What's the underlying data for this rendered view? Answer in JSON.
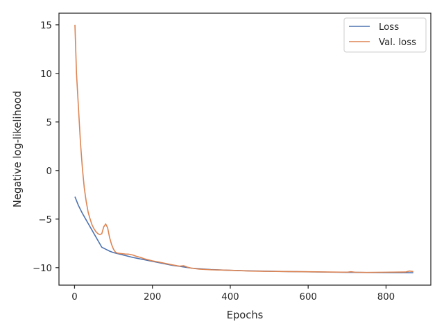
{
  "chart_data": {
    "type": "line",
    "xlabel": "Epochs",
    "ylabel": "Negative log-likelihood",
    "xlim": [
      -40,
      915
    ],
    "ylim": [
      -11.8,
      16.2
    ],
    "xticks": [
      0,
      200,
      400,
      600,
      800
    ],
    "yticks": [
      -10,
      -5,
      0,
      5,
      10,
      15
    ],
    "grid": false,
    "legend_position": "top-right",
    "series": [
      {
        "name": "Loss",
        "color": "#4c72b0",
        "x": [
          1,
          10,
          20,
          30,
          40,
          50,
          60,
          70,
          80,
          90,
          100,
          110,
          120,
          150,
          200,
          250,
          300,
          350,
          400,
          450,
          500,
          550,
          600,
          650,
          700,
          750,
          800,
          850,
          870
        ],
        "y": [
          -2.7,
          -3.6,
          -4.4,
          -5.1,
          -5.8,
          -6.5,
          -7.2,
          -7.9,
          -8.1,
          -8.3,
          -8.45,
          -8.55,
          -8.65,
          -8.95,
          -9.35,
          -9.75,
          -10.05,
          -10.2,
          -10.28,
          -10.33,
          -10.37,
          -10.4,
          -10.43,
          -10.46,
          -10.48,
          -10.5,
          -10.51,
          -10.52,
          -10.53
        ]
      },
      {
        "name": "Val. loss",
        "color": "#dd8452",
        "x": [
          1,
          5,
          10,
          15,
          20,
          25,
          30,
          35,
          40,
          45,
          50,
          55,
          60,
          65,
          70,
          75,
          80,
          85,
          90,
          95,
          100,
          105,
          110,
          120,
          130,
          140,
          150,
          160,
          170,
          180,
          200,
          220,
          250,
          270,
          280,
          290,
          300,
          320,
          350,
          400,
          450,
          500,
          550,
          600,
          650,
          700,
          710,
          720,
          750,
          800,
          850,
          860,
          870
        ],
        "y": [
          15.0,
          10.0,
          6.5,
          3.0,
          0.3,
          -1.8,
          -3.2,
          -4.3,
          -5.0,
          -5.6,
          -6.0,
          -6.3,
          -6.5,
          -6.6,
          -6.5,
          -5.8,
          -5.5,
          -5.9,
          -6.9,
          -7.6,
          -8.1,
          -8.4,
          -8.5,
          -8.55,
          -8.6,
          -8.62,
          -8.7,
          -8.85,
          -8.95,
          -9.1,
          -9.3,
          -9.45,
          -9.7,
          -9.85,
          -9.8,
          -9.95,
          -10.05,
          -10.15,
          -10.22,
          -10.27,
          -10.35,
          -10.38,
          -10.4,
          -10.42,
          -10.45,
          -10.47,
          -10.42,
          -10.47,
          -10.49,
          -10.47,
          -10.45,
          -10.35,
          -10.4
        ]
      }
    ]
  }
}
